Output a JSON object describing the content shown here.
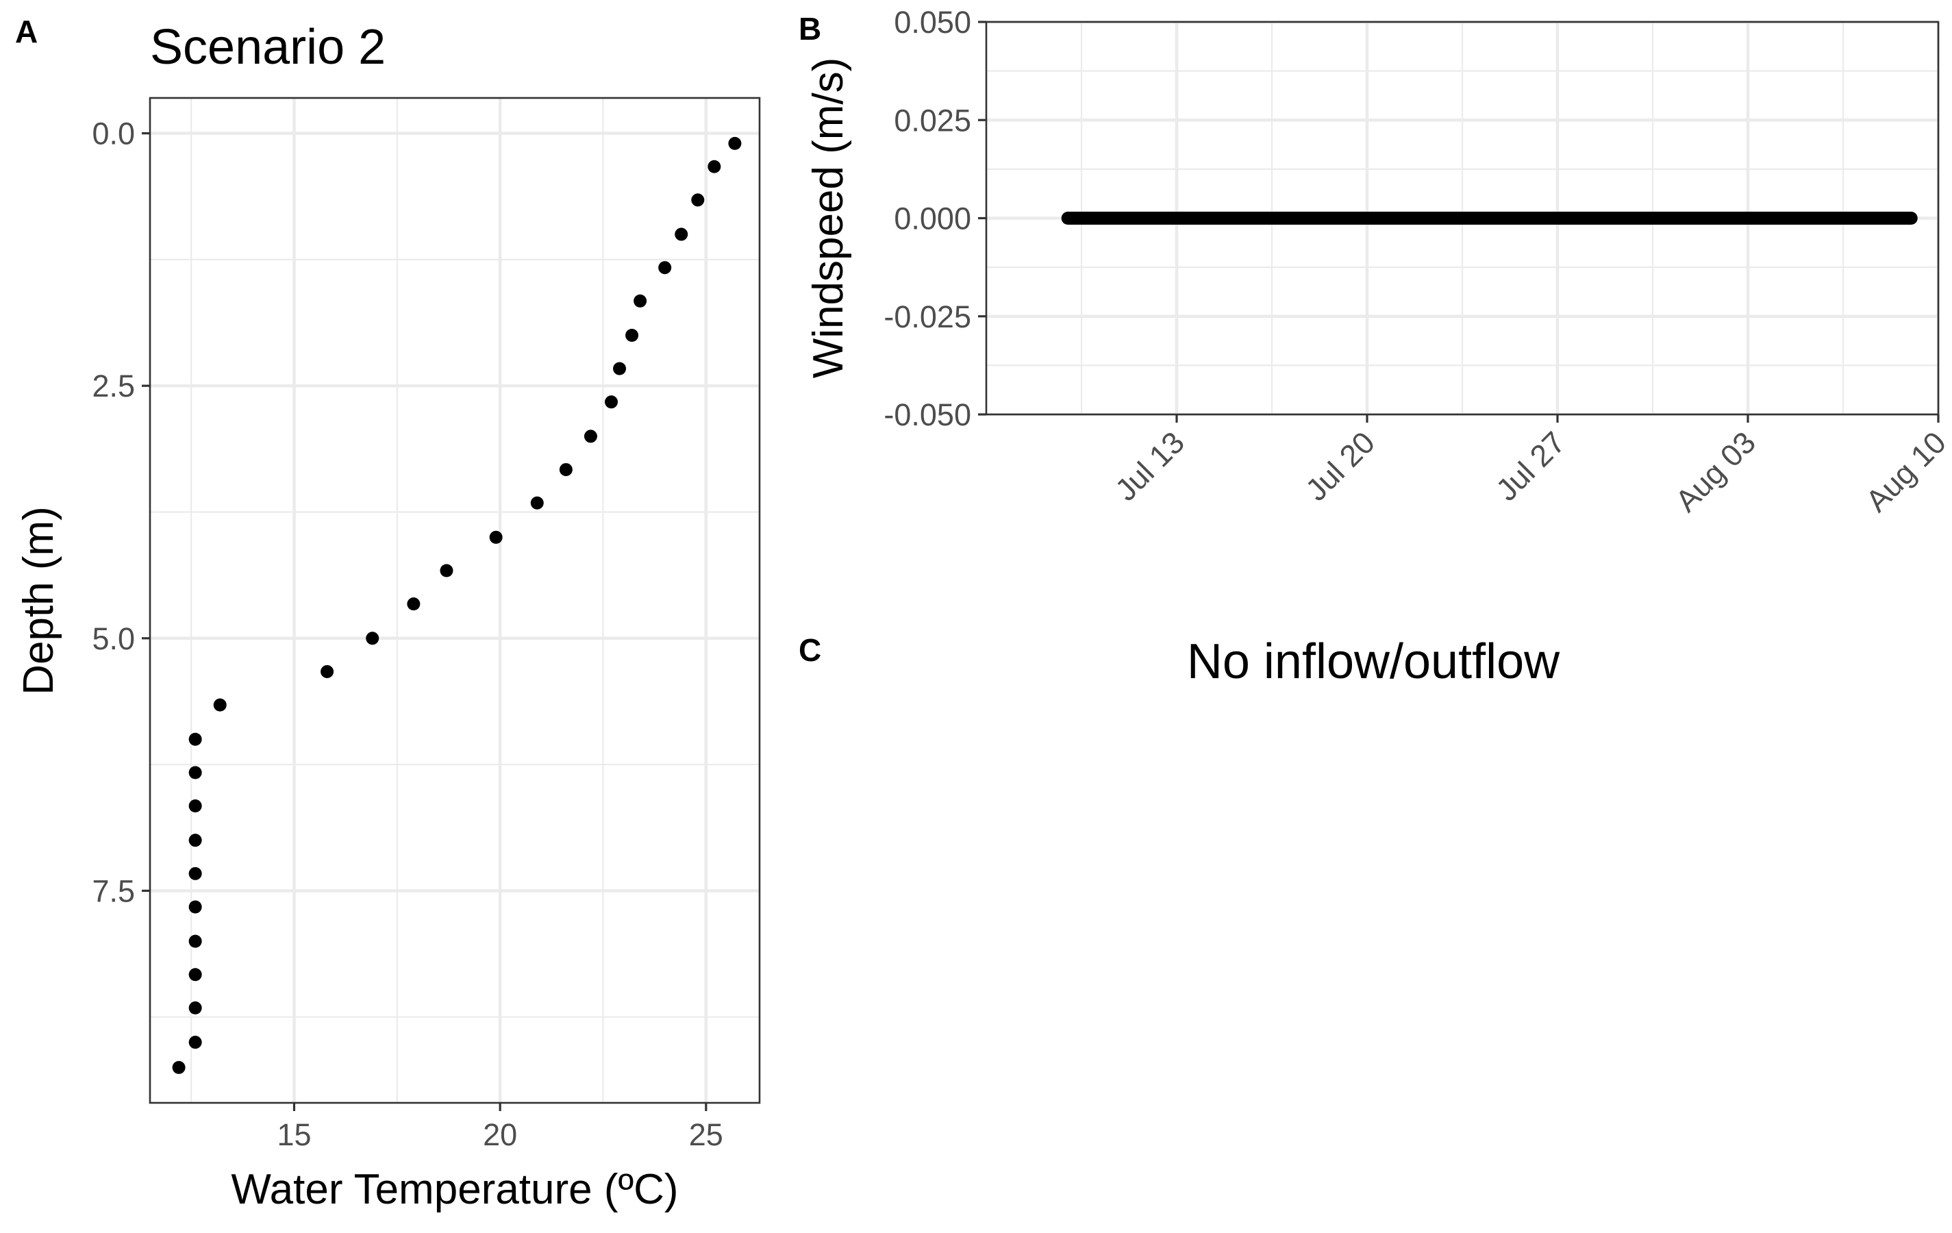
{
  "panels": {
    "a_label": "A",
    "b_label": "B",
    "c_label": "C",
    "c_text": "No inflow/outflow"
  },
  "chart_data": [
    {
      "panel": "A",
      "type": "scatter",
      "title": "Scenario 2",
      "xlabel": "Water Temperature (ºC)",
      "ylabel": "Depth (m)",
      "xlim": [
        11.5,
        26.3
      ],
      "ylim": [
        9.6,
        -0.35
      ],
      "y_reversed": true,
      "x_ticks": [
        15,
        20,
        25
      ],
      "x_tick_labels": [
        "15",
        "20",
        "25"
      ],
      "y_ticks": [
        0,
        2.5,
        5,
        7.5
      ],
      "y_tick_labels": [
        "0.0",
        "2.5",
        "5.0",
        "7.5"
      ],
      "grid": true,
      "points": [
        {
          "x": 25.7,
          "y": 0.1
        },
        {
          "x": 25.2,
          "y": 0.33
        },
        {
          "x": 24.8,
          "y": 0.66
        },
        {
          "x": 24.4,
          "y": 1.0
        },
        {
          "x": 24.0,
          "y": 1.33
        },
        {
          "x": 23.4,
          "y": 1.66
        },
        {
          "x": 23.2,
          "y": 2.0
        },
        {
          "x": 22.9,
          "y": 2.33
        },
        {
          "x": 22.7,
          "y": 2.66
        },
        {
          "x": 22.2,
          "y": 3.0
        },
        {
          "x": 21.6,
          "y": 3.33
        },
        {
          "x": 20.9,
          "y": 3.66
        },
        {
          "x": 19.9,
          "y": 4.0
        },
        {
          "x": 18.7,
          "y": 4.33
        },
        {
          "x": 17.9,
          "y": 4.66
        },
        {
          "x": 16.9,
          "y": 5.0
        },
        {
          "x": 15.8,
          "y": 5.33
        },
        {
          "x": 13.2,
          "y": 5.66
        },
        {
          "x": 12.6,
          "y": 6.0
        },
        {
          "x": 12.6,
          "y": 6.33
        },
        {
          "x": 12.6,
          "y": 6.66
        },
        {
          "x": 12.6,
          "y": 7.0
        },
        {
          "x": 12.6,
          "y": 7.33
        },
        {
          "x": 12.6,
          "y": 7.66
        },
        {
          "x": 12.6,
          "y": 8.0
        },
        {
          "x": 12.6,
          "y": 8.33
        },
        {
          "x": 12.6,
          "y": 8.66
        },
        {
          "x": 12.6,
          "y": 9.0
        },
        {
          "x": 12.2,
          "y": 9.25
        }
      ]
    },
    {
      "panel": "B",
      "type": "line",
      "xlabel": "",
      "ylabel": "Windspeed (m/s)",
      "x_range": [
        "2023-07-09",
        "2023-08-09"
      ],
      "xlim": [
        "2023-07-06",
        "2023-08-10"
      ],
      "ylim": [
        -0.05,
        0.05
      ],
      "x_ticks": [
        "2023-07-13",
        "2023-07-20",
        "2023-07-27",
        "2023-08-03",
        "2023-08-10"
      ],
      "x_tick_labels": [
        "Jul 13",
        "Jul 20",
        "Jul 27",
        "Aug 03",
        "Aug 10"
      ],
      "y_ticks": [
        -0.05,
        -0.025,
        0,
        0.025,
        0.05
      ],
      "y_tick_labels": [
        "-0.050",
        "-0.025",
        "0.000",
        "0.025",
        "0.050"
      ],
      "grid": true,
      "series": [
        {
          "value": 0.0
        }
      ]
    }
  ]
}
